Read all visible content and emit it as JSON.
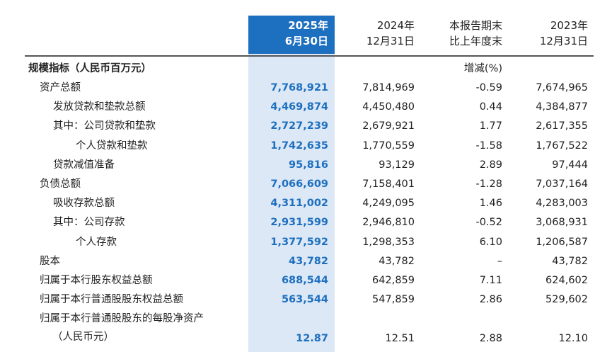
{
  "header": {
    "current": [
      "2025年",
      "6月30日"
    ],
    "prior_year_end": [
      "2024年",
      "12月31日"
    ],
    "change": [
      "本报告期末",
      "比上年度末"
    ],
    "prior2_year_end": [
      "2023年",
      "12月31日"
    ]
  },
  "section": {
    "title": "规模指标（人民币百万元）",
    "change_unit": "增减(%)"
  },
  "rows": [
    {
      "label": "资产总额",
      "indent": 1,
      "cur": "7,768,921",
      "prev": "7,814,969",
      "chg": "-0.59",
      "prev2": "7,674,965"
    },
    {
      "label": "发放贷款和垫款总额",
      "indent": 2,
      "cur": "4,469,874",
      "prev": "4,450,480",
      "chg": "0.44",
      "prev2": "4,384,877"
    },
    {
      "label": "其中：公司贷款和垫款",
      "indent": 2,
      "cur": "2,727,239",
      "prev": "2,679,921",
      "chg": "1.77",
      "prev2": "2,617,355"
    },
    {
      "label": "个人贷款和垫款",
      "indent": 3,
      "cur": "1,742,635",
      "prev": "1,770,559",
      "chg": "-1.58",
      "prev2": "1,767,522"
    },
    {
      "label": "贷款减值准备",
      "indent": 2,
      "cur": "95,816",
      "prev": "93,129",
      "chg": "2.89",
      "prev2": "97,444"
    },
    {
      "label": "负债总额",
      "indent": 1,
      "cur": "7,066,609",
      "prev": "7,158,401",
      "chg": "-1.28",
      "prev2": "7,037,164"
    },
    {
      "label": "吸收存款总额",
      "indent": 2,
      "cur": "4,311,002",
      "prev": "4,249,095",
      "chg": "1.46",
      "prev2": "4,283,003"
    },
    {
      "label": "其中：公司存款",
      "indent": 2,
      "cur": "2,931,599",
      "prev": "2,946,810",
      "chg": "-0.52",
      "prev2": "3,068,931"
    },
    {
      "label": "个人存款",
      "indent": 3,
      "cur": "1,377,592",
      "prev": "1,298,353",
      "chg": "6.10",
      "prev2": "1,206,587"
    },
    {
      "label": "股本",
      "indent": 1,
      "cur": "43,782",
      "prev": "43,782",
      "chg": "–",
      "prev2": "43,782"
    },
    {
      "label": "归属于本行股东权益总额",
      "indent": 1,
      "cur": "688,544",
      "prev": "642,859",
      "chg": "7.11",
      "prev2": "624,602"
    },
    {
      "label": "归属于本行普通股股东权益总额",
      "indent": 1,
      "cur": "563,544",
      "prev": "547,859",
      "chg": "2.86",
      "prev2": "529,602"
    },
    {
      "label": "归属于本行普通股股东的每股净资产",
      "label2": "（人民币元）",
      "indent": 1,
      "cur": "12.87",
      "prev": "12.51",
      "chg": "2.88",
      "prev2": "12.10"
    }
  ]
}
